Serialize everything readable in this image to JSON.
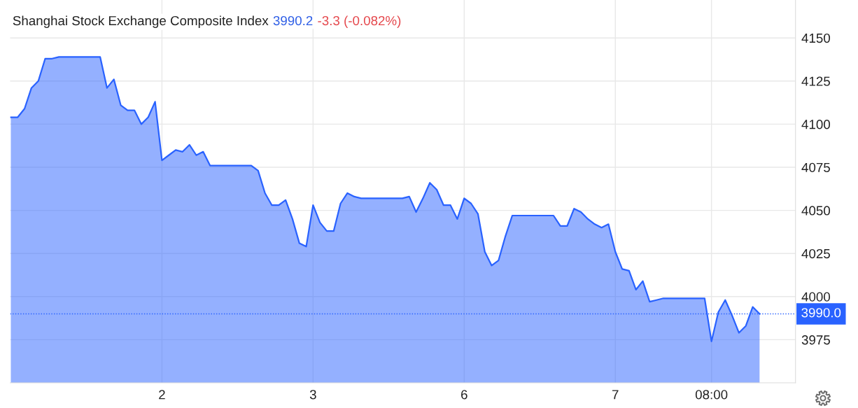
{
  "chart_data": {
    "type": "area",
    "title": "Shanghai Stock Exchange Composite Index",
    "annotations": [
      "3990.2",
      "-3.3 (-0.082%)"
    ],
    "categories": [
      null,
      null,
      null,
      null,
      null,
      null,
      null,
      null,
      null,
      null,
      null,
      null,
      null,
      null,
      null,
      null,
      null,
      null,
      null,
      null,
      null,
      null,
      "2",
      null,
      null,
      null,
      null,
      null,
      null,
      null,
      null,
      null,
      null,
      null,
      null,
      null,
      null,
      null,
      null,
      null,
      null,
      null,
      null,
      null,
      "3",
      null,
      null,
      null,
      null,
      null,
      null,
      null,
      null,
      null,
      null,
      null,
      null,
      null,
      null,
      null,
      null,
      null,
      null,
      null,
      null,
      null,
      "6",
      null,
      null,
      null,
      null,
      null,
      null,
      null,
      null,
      null,
      null,
      null,
      null,
      null,
      null,
      null,
      null,
      null,
      null,
      null,
      null,
      null,
      "7",
      null,
      null,
      null,
      null,
      null,
      null,
      null,
      null,
      null,
      null,
      null,
      null,
      null,
      "08:00",
      null,
      null,
      null,
      null,
      null,
      null,
      null
    ],
    "series": [
      {
        "color": "#2962ff",
        "values": [
          4104,
          4104,
          4109,
          4121,
          4125,
          4138,
          4138,
          4139,
          4139,
          4139,
          4139,
          4139,
          4139,
          4139,
          4121,
          4126,
          4111,
          4108,
          4108,
          4100,
          4104,
          4113,
          4079,
          4082,
          4085,
          4084,
          4088,
          4082,
          4084,
          4076,
          4076,
          4076,
          4076,
          4076,
          4076,
          4076,
          4073,
          4060,
          4053,
          4053,
          4056,
          4045,
          4031,
          4029,
          4053,
          4043,
          4038,
          4038,
          4054,
          4060,
          4058,
          4057,
          4057,
          4057,
          4057,
          4057,
          4057,
          4057,
          4058,
          4049,
          4057,
          4066,
          4062,
          4053,
          4053,
          4045,
          4057,
          4054,
          4048,
          4026,
          4018,
          4021,
          4035,
          4047,
          4047,
          4047,
          4047,
          4047,
          4047,
          4047,
          4041,
          4041,
          4051,
          4049,
          4045,
          4042,
          4040,
          4042,
          4026,
          4016,
          4015,
          4004,
          4009,
          3997,
          3998,
          3999,
          3999,
          3999,
          3999,
          3999,
          3999,
          3999,
          3974,
          3991,
          3998,
          3989,
          3979,
          3983,
          3994,
          3990
        ]
      }
    ],
    "ylim": [
      3950,
      4172
    ],
    "yticks": [
      3975,
      4000,
      4025,
      4050,
      4075,
      4100,
      4125,
      4150
    ],
    "ref_lines": [
      {
        "axis": "y",
        "value": 3990.0,
        "label": "3990.0",
        "color": "#2962ff",
        "line_style": "dotted"
      }
    ],
    "grid": true
  }
}
